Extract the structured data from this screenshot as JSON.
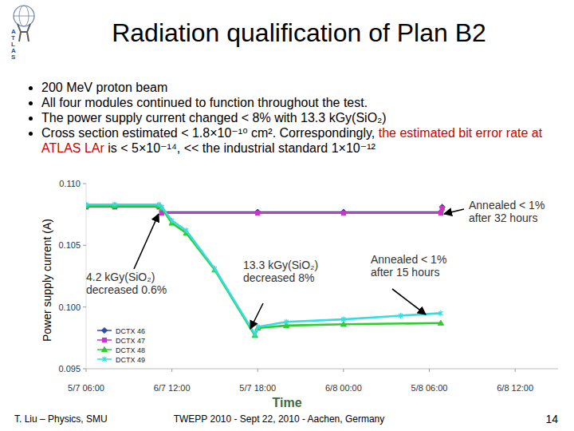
{
  "slide": {
    "title": "Radiation qualification of Plan B2",
    "logo_text": "ATLAS",
    "bullets": [
      [
        {
          "text": "200 MeV proton beam"
        }
      ],
      [
        {
          "text": "All four modules continued to function throughout the test."
        }
      ],
      [
        {
          "text": "The power supply current changed < 8% with 13.3 kGy(SiO₂)"
        }
      ],
      [
        {
          "text": "Cross section estimated < 1.8×10⁻¹⁰ cm². Correspondingly, "
        },
        {
          "text": "the estimated bit error rate at ATLAS LAr",
          "color": "#cc0000"
        },
        {
          "text": " is < 5×10⁻¹⁴, << the industrial standard 1×10⁻¹²"
        }
      ]
    ],
    "footer_left": "T. Liu – Physics, SMU",
    "footer_center": "TWEPP 2010 - Sept 22, 2010 - Aachen, Germany",
    "page_number": "14"
  },
  "chart_data": {
    "type": "line",
    "y_label": "Power supply current (A)",
    "x_label": "Time",
    "xlim": [
      0,
      33
    ],
    "xticks": [
      {
        "value": 0,
        "label": "5/7 06:00"
      },
      {
        "value": 6,
        "label": "6/7 12:00"
      },
      {
        "value": 12,
        "label": "5/7 18:00"
      },
      {
        "value": 18,
        "label": "6/8 00:00"
      },
      {
        "value": 24,
        "label": "5/8 06:00"
      },
      {
        "value": 30,
        "label": "6/8 12:00"
      }
    ],
    "ylim": [
      0.095,
      0.11
    ],
    "yticks": [
      0.095,
      {
        "value": 0.1,
        "label": "0.100"
      },
      0.105,
      {
        "value": 0.11,
        "label": "0.110"
      }
    ],
    "grid": false,
    "legend": "lower left",
    "series": [
      {
        "name": "DCTX 46",
        "color": "#3049b0",
        "marker": "diamond",
        "x": [
          0,
          2,
          5.1,
          5.3,
          12,
          18,
          24.8,
          24.9
        ],
        "values": [
          0.1082,
          0.1082,
          0.1082,
          0.1077,
          0.1077,
          0.1077,
          0.1077,
          0.1081
        ]
      },
      {
        "name": "DCTX 47",
        "color": "#cc33cc",
        "marker": "square",
        "x": [
          0,
          2,
          5.1,
          5.3,
          12,
          18,
          24.8,
          24.9
        ],
        "values": [
          0.1081,
          0.1081,
          0.1081,
          0.1076,
          0.1076,
          0.1076,
          0.1076,
          0.108
        ]
      },
      {
        "name": "DCTX 48",
        "color": "#2ecc2e",
        "marker": "triangle",
        "x": [
          0,
          2,
          5.1,
          5.3,
          6,
          7,
          9,
          11.8,
          12,
          14,
          18,
          24.8
        ],
        "values": [
          0.1082,
          0.1082,
          0.1082,
          0.108,
          0.1068,
          0.106,
          0.103,
          0.0977,
          0.0983,
          0.0985,
          0.0986,
          0.0987
        ]
      },
      {
        "name": "DCTX 49",
        "color": "#33dde0",
        "marker": "asterisk",
        "x": [
          0,
          2,
          5.1,
          5.3,
          6,
          7,
          9,
          11.8,
          12,
          14,
          18,
          22,
          24.8
        ],
        "values": [
          0.1083,
          0.1083,
          0.1083,
          0.1081,
          0.107,
          0.1062,
          0.1031,
          0.0978,
          0.0984,
          0.0988,
          0.099,
          0.0993,
          0.0995
        ]
      }
    ],
    "annotations": [
      {
        "text": "Annealed < 1%\nafter 32 hours"
      },
      {
        "text": "4.2 kGy(SiO₂)\ndecreased 0.6%"
      },
      {
        "text": "13.3 kGy(SiO₂)\ndecreased 8%"
      },
      {
        "text": "Annealed < 1%\nafter 15 hours"
      }
    ]
  }
}
